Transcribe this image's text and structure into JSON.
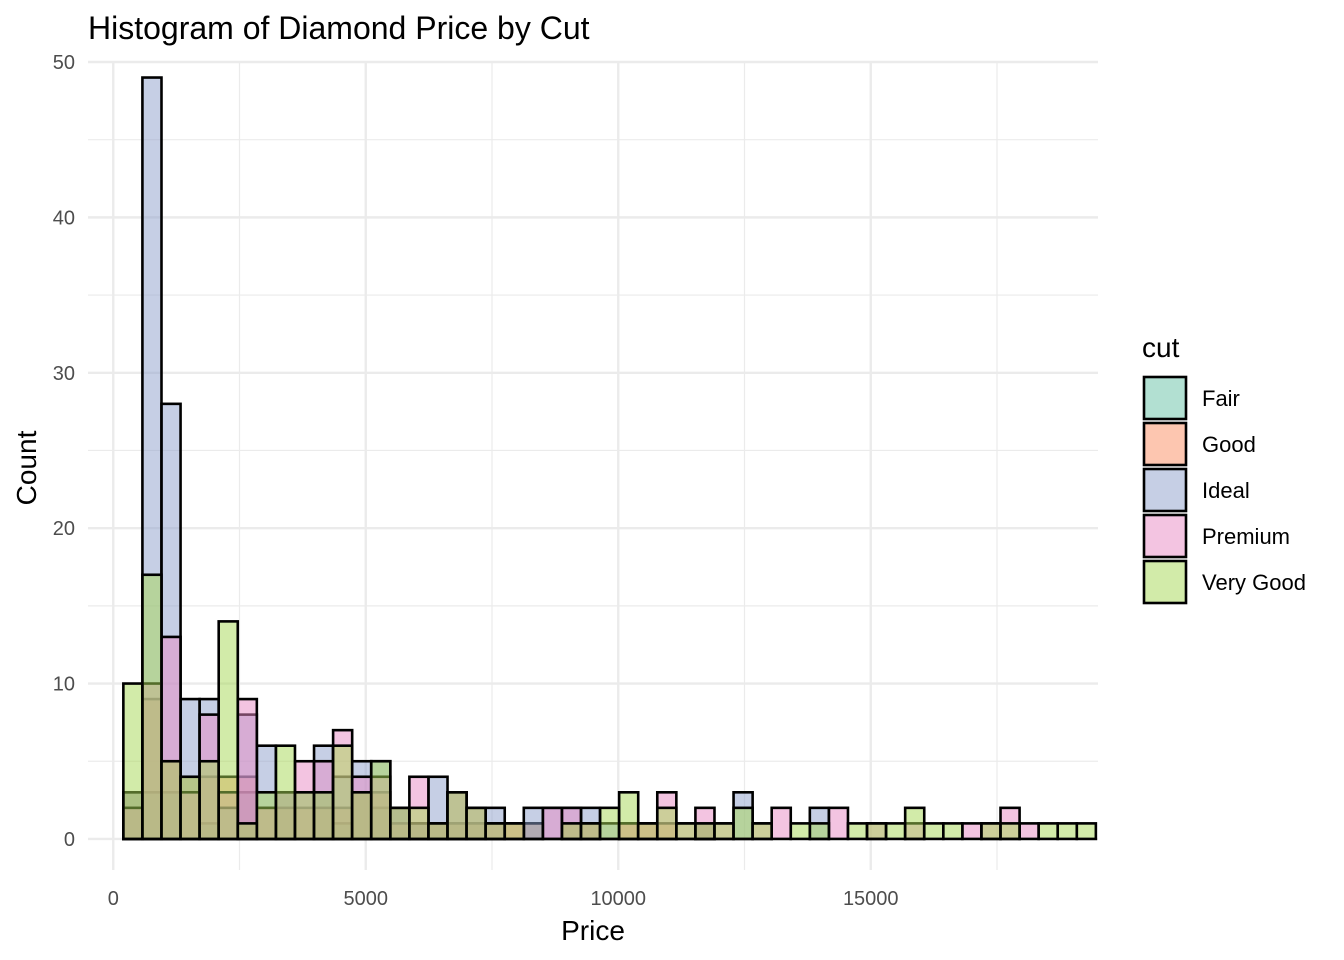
{
  "chart_data": {
    "type": "bar",
    "subtype": "histogram",
    "title": "Histogram of Diamond Price by Cut",
    "xlabel": "Price",
    "ylabel": "Count",
    "xlim": [
      -500,
      19500
    ],
    "ylim": [
      -2,
      50
    ],
    "x_ticks": [
      0,
      5000,
      10000,
      15000
    ],
    "x_tick_labels": [
      "0",
      "5000",
      "10000",
      "15000"
    ],
    "y_ticks": [
      0,
      10,
      20,
      30,
      40,
      50
    ],
    "y_tick_labels": [
      "0",
      "10",
      "20",
      "30",
      "40",
      "50"
    ],
    "bin_width": 377.6,
    "bins_start": 200,
    "grid": true,
    "bar_opacity": 0.5,
    "legend": {
      "title": "cut",
      "position": "right"
    },
    "series": [
      {
        "name": "Fair",
        "color": "#66C2A5",
        "values": [
          3,
          3,
          3,
          0,
          1,
          0,
          3,
          0,
          3,
          0,
          3,
          1,
          3,
          2,
          2,
          1,
          1,
          1,
          1,
          0,
          0,
          1,
          0,
          0,
          0,
          0,
          0,
          0,
          0,
          0,
          1,
          0,
          0,
          0,
          0,
          0,
          0,
          0,
          0,
          0,
          0,
          0,
          0,
          0,
          0,
          0,
          0,
          0,
          0,
          0,
          0
        ]
      },
      {
        "name": "Good",
        "color": "#FC8D62",
        "values": [
          3,
          9,
          5,
          4,
          4,
          4,
          4,
          2,
          2,
          2,
          2,
          2,
          3,
          3,
          1,
          1,
          1,
          1,
          1,
          1,
          1,
          1,
          0,
          1,
          1,
          0,
          1,
          1,
          1,
          0,
          1,
          0,
          0,
          0,
          0,
          0,
          0,
          0,
          0,
          0,
          0,
          0,
          0,
          0,
          0,
          0,
          0,
          0,
          0,
          0,
          0
        ]
      },
      {
        "name": "Ideal",
        "color": "#8DA0CB",
        "values": [
          3,
          49,
          28,
          9,
          9,
          2,
          8,
          6,
          3,
          3,
          6,
          4,
          5,
          5,
          2,
          1,
          4,
          3,
          2,
          2,
          0,
          2,
          2,
          2,
          2,
          1,
          0,
          0,
          0,
          0,
          1,
          0,
          3,
          0,
          0,
          0,
          2,
          0,
          0,
          0,
          0,
          0,
          0,
          0,
          0,
          0,
          0,
          0,
          0,
          0,
          0
        ]
      },
      {
        "name": "Premium",
        "color": "#E78AC3",
        "values": [
          2,
          10,
          13,
          3,
          8,
          3,
          9,
          2,
          3,
          5,
          5,
          7,
          4,
          4,
          2,
          4,
          1,
          3,
          2,
          1,
          1,
          0,
          2,
          2,
          1,
          0,
          1,
          1,
          3,
          1,
          2,
          1,
          0,
          1,
          2,
          0,
          0,
          2,
          0,
          1,
          0,
          1,
          0,
          0,
          1,
          1,
          2,
          1,
          0,
          0,
          0
        ]
      },
      {
        "name": "Very Good",
        "color": "#A6D854",
        "values": [
          10,
          17,
          5,
          4,
          5,
          14,
          1,
          3,
          6,
          3,
          3,
          6,
          3,
          5,
          2,
          2,
          1,
          3,
          2,
          1,
          1,
          0,
          0,
          1,
          1,
          2,
          3,
          1,
          2,
          1,
          1,
          1,
          2,
          1,
          0,
          1,
          1,
          0,
          1,
          1,
          1,
          2,
          1,
          1,
          0,
          1,
          1,
          0,
          1,
          1,
          1
        ]
      }
    ]
  }
}
